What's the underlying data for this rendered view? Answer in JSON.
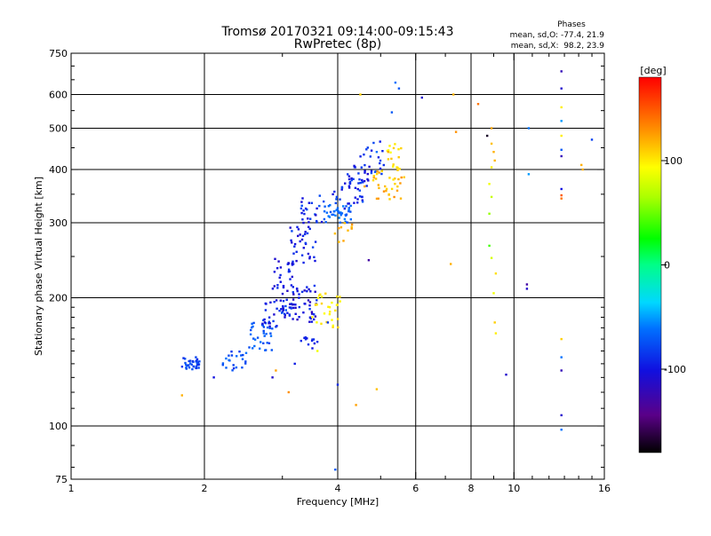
{
  "chart_data": {
    "type": "scatter",
    "title": "Tromsø 20170321 09:14:00-09:15:43",
    "subtitle": "RwPretec (8p)",
    "xlabel": "Frequency [MHz]",
    "ylabel": "Stationary phase Virtual Height [km]",
    "x_scale": "log",
    "y_scale": "log",
    "xlim": [
      1,
      16
    ],
    "ylim": [
      75,
      750
    ],
    "x_ticks": [
      "1",
      "2",
      "4",
      "6",
      "8",
      "10",
      "16"
    ],
    "y_ticks": [
      "75",
      "100",
      "200",
      "300",
      "400",
      "500",
      "600",
      "750"
    ],
    "grid": true,
    "phase_info": {
      "heading": "Phases",
      "line1": "mean, sd,O: -77.4, 21.9",
      "line2": "mean, sd,X:  98.2, 23.9"
    },
    "colorbar": {
      "label": "[deg]",
      "range": [
        -180,
        180
      ],
      "ticks": [
        "100",
        "0",
        "-100"
      ],
      "tick_values": [
        100,
        0,
        -100
      ]
    },
    "clusters": [
      {
        "f": [
          1.78,
          1.95
        ],
        "h": [
          135,
          145
        ],
        "phase": [
          -90,
          -65
        ],
        "n": 35
      },
      {
        "f": [
          2.2,
          2.55
        ],
        "h": [
          135,
          152
        ],
        "phase": [
          -90,
          -60
        ],
        "n": 22
      },
      {
        "f": [
          2.45,
          2.85
        ],
        "h": [
          150,
          175
        ],
        "phase": [
          -80,
          -60
        ],
        "n": 30
      },
      {
        "f": [
          2.7,
          3.15
        ],
        "h": [
          170,
          200
        ],
        "phase": [
          -110,
          -70
        ],
        "n": 40
      },
      {
        "f": [
          3.0,
          3.6
        ],
        "h": [
          175,
          215
        ],
        "phase": [
          -120,
          -80
        ],
        "n": 55
      },
      {
        "f": [
          3.5,
          4.05
        ],
        "h": [
          170,
          205
        ],
        "phase": [
          90,
          110
        ],
        "n": 30
      },
      {
        "f": [
          2.85,
          3.2
        ],
        "h": [
          210,
          250
        ],
        "phase": [
          -115,
          -85
        ],
        "n": 25
      },
      {
        "f": [
          3.1,
          3.6
        ],
        "h": [
          240,
          300
        ],
        "phase": [
          -110,
          -75
        ],
        "n": 35
      },
      {
        "f": [
          3.3,
          3.75
        ],
        "h": [
          290,
          350
        ],
        "phase": [
          -110,
          -70
        ],
        "n": 25
      },
      {
        "f": [
          3.7,
          4.3
        ],
        "h": [
          300,
          330
        ],
        "phase": [
          -75,
          -55
        ],
        "n": 40
      },
      {
        "f": [
          3.9,
          4.6
        ],
        "h": [
          320,
          380
        ],
        "phase": [
          -105,
          -70
        ],
        "n": 30
      },
      {
        "f": [
          4.2,
          4.8
        ],
        "h": [
          360,
          410
        ],
        "phase": [
          -110,
          -80
        ],
        "n": 25
      },
      {
        "f": [
          4.5,
          5.1
        ],
        "h": [
          390,
          470
        ],
        "phase": [
          -100,
          -70
        ],
        "n": 20
      },
      {
        "f": [
          4.8,
          5.6
        ],
        "h": [
          340,
          400
        ],
        "phase": [
          105,
          130
        ],
        "n": 30
      },
      {
        "f": [
          5.15,
          5.65
        ],
        "h": [
          370,
          460
        ],
        "phase": [
          95,
          115
        ],
        "n": 20
      },
      {
        "f": [
          3.3,
          3.6
        ],
        "h": [
          152,
          162
        ],
        "phase": [
          -100,
          -85
        ],
        "n": 12
      },
      {
        "f": [
          3.9,
          4.4
        ],
        "h": [
          270,
          300
        ],
        "phase": [
          110,
          130
        ],
        "n": 10
      }
    ],
    "points": [
      [
        5.4,
        640,
        -60
      ],
      [
        5.5,
        620,
        -70
      ],
      [
        6.2,
        590,
        -110
      ],
      [
        7.3,
        600,
        120
      ],
      [
        7.4,
        490,
        130
      ],
      [
        8.3,
        570,
        140
      ],
      [
        8.7,
        480,
        -170
      ],
      [
        8.9,
        460,
        115
      ],
      [
        9.0,
        440,
        120
      ],
      [
        9.05,
        420,
        118
      ],
      [
        8.9,
        500,
        125
      ],
      [
        8.9,
        405,
        100
      ],
      [
        8.8,
        370,
        90
      ],
      [
        8.9,
        345,
        75
      ],
      [
        8.8,
        315,
        60
      ],
      [
        8.8,
        265,
        40
      ],
      [
        8.9,
        248,
        80
      ],
      [
        9.1,
        228,
        105
      ],
      [
        9.0,
        205,
        90
      ],
      [
        9.05,
        175,
        110
      ],
      [
        9.1,
        165,
        100
      ],
      [
        9.6,
        132,
        -110
      ],
      [
        10.8,
        500,
        -60
      ],
      [
        10.8,
        390,
        -50
      ],
      [
        10.7,
        210,
        -110
      ],
      [
        10.7,
        215,
        -130
      ],
      [
        12.8,
        680,
        -120
      ],
      [
        12.8,
        620,
        -110
      ],
      [
        12.8,
        560,
        100
      ],
      [
        12.8,
        520,
        -50
      ],
      [
        12.8,
        480,
        100
      ],
      [
        12.8,
        445,
        -70
      ],
      [
        12.8,
        430,
        -120
      ],
      [
        12.8,
        360,
        -100
      ],
      [
        12.8,
        348,
        150
      ],
      [
        12.8,
        342,
        140
      ],
      [
        12.8,
        160,
        110
      ],
      [
        12.8,
        145,
        -60
      ],
      [
        12.8,
        135,
        -120
      ],
      [
        12.8,
        106,
        -110
      ],
      [
        12.8,
        98,
        -60
      ],
      [
        14.2,
        410,
        120
      ],
      [
        14.3,
        400,
        120
      ],
      [
        15.0,
        470,
        -80
      ],
      [
        1.78,
        118,
        120
      ],
      [
        2.9,
        135,
        125
      ],
      [
        3.1,
        120,
        130
      ],
      [
        4.0,
        125,
        -90
      ],
      [
        4.4,
        112,
        125
      ],
      [
        4.7,
        245,
        -130
      ],
      [
        4.9,
        122,
        115
      ],
      [
        7.2,
        240,
        120
      ],
      [
        3.8,
        175,
        -85
      ],
      [
        3.6,
        150,
        90
      ],
      [
        3.95,
        79,
        -70
      ],
      [
        3.2,
        140,
        -95
      ],
      [
        2.85,
        130,
        -110
      ],
      [
        2.1,
        130,
        -100
      ],
      [
        4.5,
        600,
        110
      ],
      [
        4.9,
        440,
        -60
      ],
      [
        5.3,
        545,
        -70
      ],
      [
        5.2,
        440,
        120
      ],
      [
        4.6,
        365,
        120
      ]
    ]
  }
}
